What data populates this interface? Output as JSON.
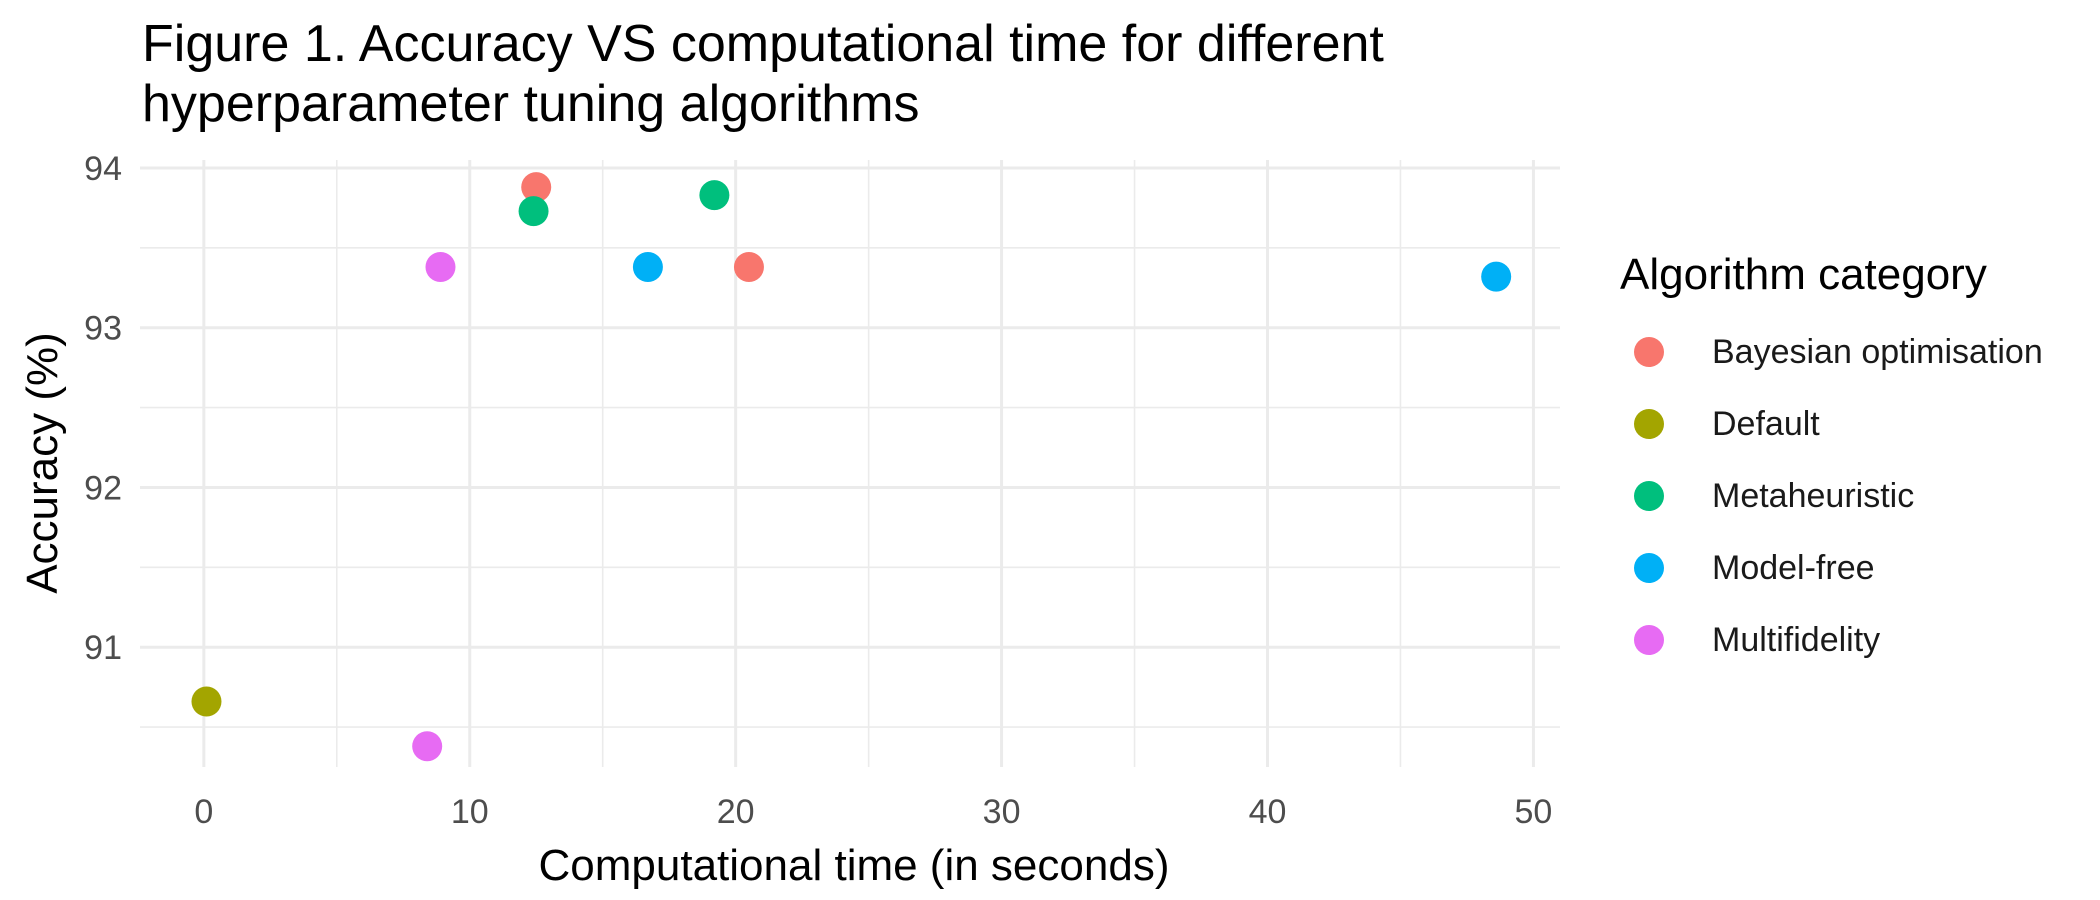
{
  "chart_data": {
    "type": "scatter",
    "title": "Figure 1. Accuracy VS computational time for different\nhyperparameter tuning algorithms",
    "xlabel": "Computational time (in seconds)",
    "ylabel": "Accuracy (%)",
    "xlim": [
      -2.4,
      51
    ],
    "ylim": [
      90.25,
      94.05
    ],
    "x_ticks": [
      0,
      10,
      20,
      30,
      40,
      50
    ],
    "y_ticks": [
      91,
      92,
      93,
      94
    ],
    "grid": true,
    "legend_title": "Algorithm category",
    "legend_position": "right",
    "series": [
      {
        "name": "Bayesian optimisation",
        "color": "#F8766D",
        "points": [
          {
            "x": 12.5,
            "y": 93.88
          },
          {
            "x": 20.5,
            "y": 93.38
          }
        ]
      },
      {
        "name": "Default",
        "color": "#A3A500",
        "points": [
          {
            "x": 0.1,
            "y": 90.66
          }
        ]
      },
      {
        "name": "Metaheuristic",
        "color": "#00BF7D",
        "points": [
          {
            "x": 12.4,
            "y": 93.73
          },
          {
            "x": 19.2,
            "y": 93.83
          }
        ]
      },
      {
        "name": "Model-free",
        "color": "#00B0F6",
        "points": [
          {
            "x": 16.7,
            "y": 93.38
          },
          {
            "x": 48.6,
            "y": 93.32
          }
        ]
      },
      {
        "name": "Multifidelity",
        "color": "#E76BF3",
        "points": [
          {
            "x": 8.9,
            "y": 93.38
          },
          {
            "x": 8.4,
            "y": 90.38
          }
        ]
      }
    ]
  }
}
